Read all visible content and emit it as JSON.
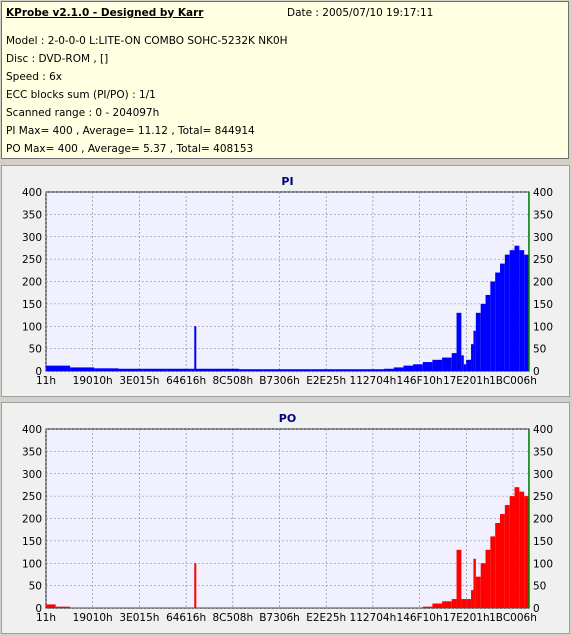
{
  "header": {
    "title": "KProbe v2.1.0 - Designed by Karr",
    "date": "Date : 2005/07/10 19:17:11",
    "lines": [
      "Model : 2-0-0-0 L:LITE-ON COMBO SOHC-5232K NK0H",
      "Disc : DVD-ROM ,  []",
      "Speed : 6x",
      "ECC blocks sum (PI/PO) : 1/1",
      "Scanned range : 0 - 204097h",
      "PI Max= 400 , Average= 11.12 , Total= 844914",
      "PO Max= 400 , Average= 5.37 , Total= 408153"
    ]
  },
  "colors": {
    "pi": "#0000ff",
    "po": "#ff0000",
    "end_marker": "#008000",
    "plot_bg": "#f0f0ff"
  },
  "chart_data": [
    {
      "type": "bar",
      "title": "PI",
      "ylim": [
        0,
        400
      ],
      "yticks": [
        0,
        50,
        100,
        150,
        200,
        250,
        300,
        350,
        400
      ],
      "xticks": [
        "11h",
        "19010h",
        "3E015h",
        "64616h",
        "8C508h",
        "B7306h",
        "E2E25h",
        "112704h",
        "146F10h",
        "17E201h",
        "1BC006h"
      ],
      "series": [
        {
          "x_fraction": [
            0.0,
            0.05,
            0.1,
            0.15,
            0.2,
            0.25,
            0.3,
            0.307,
            0.31,
            0.35,
            0.4,
            0.45,
            0.5,
            0.55,
            0.6,
            0.65,
            0.7,
            0.72,
            0.74,
            0.76,
            0.78,
            0.8,
            0.82,
            0.84,
            0.85,
            0.86,
            0.865,
            0.87,
            0.88,
            0.885,
            0.89,
            0.9,
            0.91,
            0.92,
            0.93,
            0.94,
            0.95,
            0.96,
            0.97,
            0.98,
            0.99,
            1.0
          ],
          "values": [
            12,
            8,
            6,
            5,
            5,
            5,
            5,
            100,
            5,
            5,
            4,
            4,
            4,
            4,
            4,
            4,
            5,
            8,
            12,
            15,
            20,
            25,
            30,
            40,
            130,
            35,
            15,
            25,
            60,
            90,
            130,
            150,
            170,
            200,
            220,
            240,
            260,
            270,
            280,
            270,
            260,
            400
          ]
        }
      ]
    },
    {
      "type": "bar",
      "title": "PO",
      "ylim": [
        0,
        400
      ],
      "yticks": [
        0,
        50,
        100,
        150,
        200,
        250,
        300,
        350,
        400
      ],
      "xticks": [
        "11h",
        "19010h",
        "3E015h",
        "64616h",
        "8C508h",
        "B7306h",
        "E2E25h",
        "112704h",
        "146F10h",
        "17E201h",
        "1BC006h"
      ],
      "series": [
        {
          "x_fraction": [
            0.0,
            0.02,
            0.05,
            0.1,
            0.2,
            0.3,
            0.307,
            0.31,
            0.4,
            0.5,
            0.6,
            0.7,
            0.78,
            0.8,
            0.82,
            0.84,
            0.85,
            0.86,
            0.87,
            0.88,
            0.885,
            0.89,
            0.9,
            0.91,
            0.92,
            0.93,
            0.94,
            0.95,
            0.96,
            0.97,
            0.98,
            0.99,
            1.0
          ],
          "values": [
            8,
            3,
            1,
            1,
            1,
            1,
            100,
            1,
            1,
            1,
            1,
            1,
            3,
            10,
            15,
            20,
            130,
            20,
            20,
            40,
            110,
            70,
            100,
            130,
            160,
            190,
            210,
            230,
            250,
            270,
            260,
            250,
            400
          ]
        }
      ]
    }
  ]
}
